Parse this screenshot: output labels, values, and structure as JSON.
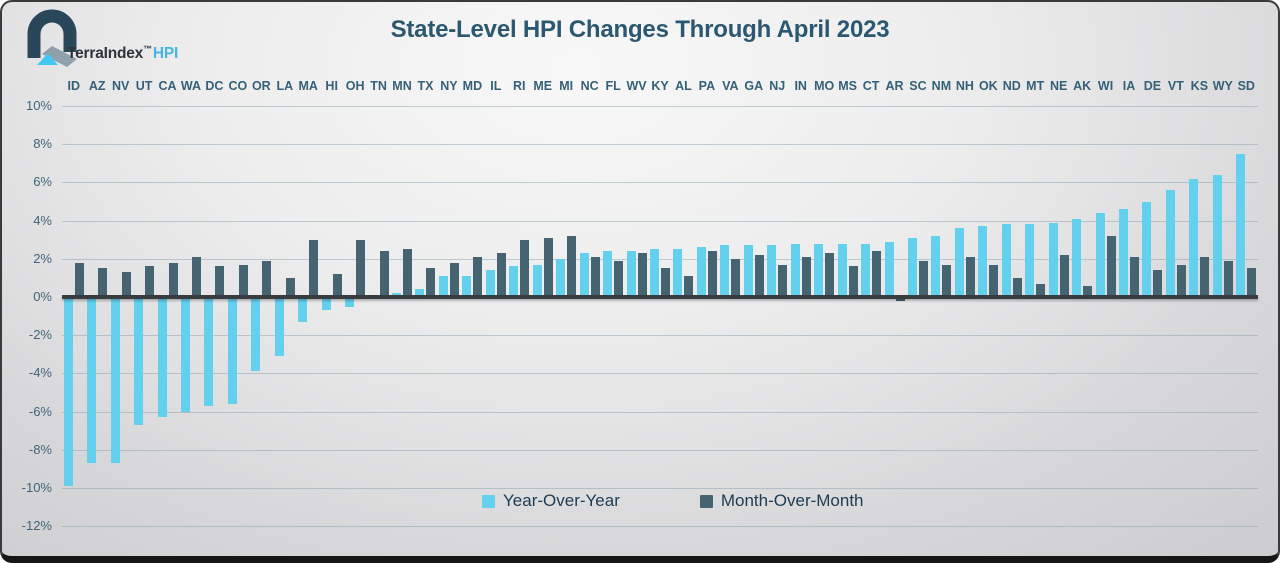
{
  "logo": {
    "brand": "TerraIndex",
    "tm": "™",
    "product": "HPI"
  },
  "title": "State-Level HPI Changes Through April 2023",
  "legend": {
    "yoy": "Year-Over-Year",
    "mom": "Month-Over-Month"
  },
  "colors": {
    "yoy_bar": "#63d0ee",
    "mom_bar": "#456370",
    "zero_axis": "#393c3f",
    "gridline": "#9eb2c0",
    "title_text": "#2b5870",
    "state_label_text": "#356077",
    "ytick_text": "#3f6478",
    "legend_text": "#1e3b51",
    "logo_brand_text": "#2e3338",
    "logo_product_text": "#45b5e3"
  },
  "chart_data": {
    "type": "bar",
    "title": "State-Level HPI Changes Through April 2023",
    "categories": [
      "ID",
      "AZ",
      "NV",
      "UT",
      "CA",
      "WA",
      "DC",
      "CO",
      "OR",
      "LA",
      "MA",
      "HI",
      "OH",
      "TN",
      "MN",
      "TX",
      "NY",
      "MD",
      "IL",
      "RI",
      "ME",
      "MI",
      "NC",
      "FL",
      "WV",
      "KY",
      "AL",
      "PA",
      "VA",
      "GA",
      "NJ",
      "IN",
      "MO",
      "MS",
      "CT",
      "AR",
      "SC",
      "NM",
      "NH",
      "OK",
      "ND",
      "MT",
      "NE",
      "AK",
      "WI",
      "IA",
      "DE",
      "VT",
      "KS",
      "WY",
      "SD"
    ],
    "series": [
      {
        "name": "Year-Over-Year",
        "values": [
          -9.9,
          -8.7,
          -8.7,
          -6.7,
          -6.3,
          -6.0,
          -5.7,
          -5.6,
          -3.9,
          -3.1,
          -1.3,
          -0.7,
          -0.5,
          0.0,
          0.2,
          0.4,
          1.1,
          1.1,
          1.4,
          1.6,
          1.7,
          2.0,
          2.3,
          2.4,
          2.4,
          2.5,
          2.5,
          2.6,
          2.7,
          2.7,
          2.7,
          2.8,
          2.8,
          2.8,
          2.8,
          2.9,
          3.1,
          3.2,
          3.6,
          3.7,
          3.8,
          3.8,
          3.9,
          4.1,
          4.4,
          4.6,
          5.0,
          5.6,
          6.2,
          6.4,
          7.5
        ]
      },
      {
        "name": "Month-Over-Month",
        "values": [
          1.8,
          1.5,
          1.3,
          1.6,
          1.8,
          2.1,
          1.6,
          1.7,
          1.9,
          1.0,
          3.0,
          1.2,
          3.0,
          2.4,
          2.5,
          1.5,
          1.8,
          2.1,
          2.3,
          3.0,
          3.1,
          3.2,
          2.1,
          1.9,
          2.3,
          1.5,
          1.1,
          2.4,
          2.0,
          2.2,
          1.7,
          2.1,
          2.3,
          1.6,
          2.4,
          -0.1,
          1.9,
          1.7,
          2.1,
          1.7,
          1.0,
          0.7,
          2.2,
          0.6,
          3.2,
          2.1,
          1.4,
          1.7,
          2.1,
          1.9,
          1.5
        ]
      }
    ],
    "xlabel": "",
    "ylabel": "",
    "ylim": [
      -12,
      10
    ],
    "ytick_step": 2,
    "ytick_format": "percent",
    "grid": true,
    "legend_position": "bottom-center",
    "category_labels_position": "top"
  }
}
